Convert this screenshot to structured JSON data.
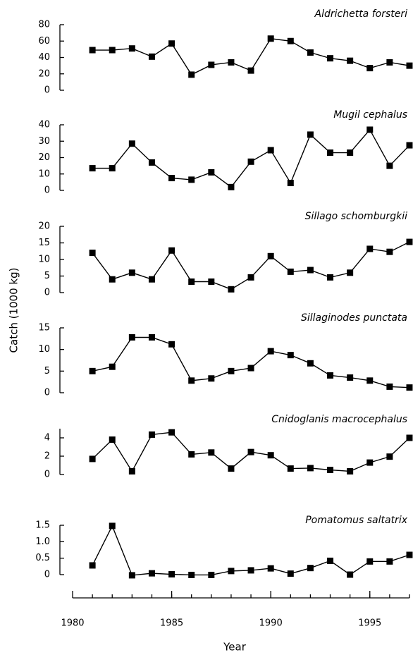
{
  "ylabel": "Catch (1000 kg)",
  "xlabel": "Year",
  "chart_data": [
    {
      "type": "line",
      "title": "Aldrichetta forsteri",
      "x": [
        1981,
        1982,
        1983,
        1984,
        1985,
        1986,
        1987,
        1988,
        1989,
        1990,
        1991,
        1992,
        1993,
        1994,
        1995,
        1996,
        1997
      ],
      "series": [
        {
          "color": "#000000",
          "values": [
            49,
            49,
            51,
            41,
            57,
            19,
            31,
            34,
            24,
            63,
            60,
            46,
            39,
            36,
            27,
            34,
            30
          ]
        }
      ],
      "ylim": [
        0,
        80
      ],
      "yticks": [
        0,
        20,
        40,
        60,
        80
      ]
    },
    {
      "type": "line",
      "title": "Mugil cephalus",
      "x": [
        1981,
        1982,
        1983,
        1984,
        1985,
        1986,
        1987,
        1988,
        1989,
        1990,
        1991,
        1992,
        1993,
        1994,
        1995,
        1996,
        1997
      ],
      "series": [
        {
          "color": "#000000",
          "values": [
            13.5,
            13.5,
            28.5,
            17,
            7.5,
            6.5,
            11,
            2,
            17.5,
            24.5,
            4.5,
            34,
            23,
            23,
            37,
            15,
            27.5
          ]
        }
      ],
      "ylim": [
        0,
        40
      ],
      "yticks": [
        0,
        10,
        20,
        30,
        40
      ]
    },
    {
      "type": "line",
      "title": "Sillago schomburgkii",
      "x": [
        1981,
        1982,
        1983,
        1984,
        1985,
        1986,
        1987,
        1988,
        1989,
        1990,
        1991,
        1992,
        1993,
        1994,
        1995,
        1996,
        1997
      ],
      "series": [
        {
          "color": "#000000",
          "values": [
            12,
            4,
            6,
            4,
            12.7,
            3.3,
            3.3,
            1,
            4.6,
            11,
            6.3,
            6.8,
            4.6,
            6,
            13.2,
            12.3,
            15.3
          ]
        }
      ],
      "ylim": [
        0,
        20
      ],
      "yticks": [
        0,
        5,
        10,
        15,
        20
      ]
    },
    {
      "type": "line",
      "title": "Sillaginodes punctata",
      "x": [
        1981,
        1982,
        1983,
        1984,
        1985,
        1986,
        1987,
        1988,
        1989,
        1990,
        1991,
        1992,
        1993,
        1994,
        1995,
        1996,
        1997
      ],
      "series": [
        {
          "color": "#000000",
          "values": [
            5,
            6,
            12.8,
            12.8,
            11.2,
            2.8,
            3.3,
            5,
            5.7,
            9.6,
            8.7,
            6.8,
            4,
            3.5,
            2.8,
            1.4,
            1.2
          ]
        }
      ],
      "ylim": [
        0,
        15
      ],
      "yticks": [
        0,
        5,
        10,
        15
      ]
    },
    {
      "type": "line",
      "title": "Cnidoglanis macrocephalus",
      "x": [
        1981,
        1982,
        1983,
        1984,
        1985,
        1986,
        1987,
        1988,
        1989,
        1990,
        1991,
        1992,
        1993,
        1994,
        1995,
        1996,
        1997
      ],
      "series": [
        {
          "color": "#000000",
          "values": [
            1.7,
            3.8,
            0.35,
            4.35,
            4.6,
            2.2,
            2.4,
            0.65,
            2.45,
            2.1,
            0.65,
            0.7,
            0.5,
            0.35,
            1.3,
            1.95,
            4
          ]
        }
      ],
      "ylim": [
        0,
        5
      ],
      "yticks": [
        0,
        2,
        4
      ]
    },
    {
      "type": "line",
      "title": "Pomatomus saltatrix",
      "x": [
        1981,
        1982,
        1983,
        1984,
        1985,
        1986,
        1987,
        1988,
        1989,
        1990,
        1991,
        1992,
        1993,
        1994,
        1995,
        1996,
        1997
      ],
      "series": [
        {
          "color": "#000000",
          "values": [
            0.28,
            1.48,
            -0.02,
            0.04,
            0.01,
            -0.01,
            -0.01,
            0.11,
            0.13,
            0.19,
            0.03,
            0.2,
            0.42,
            0.0,
            0.4,
            0.4,
            0.6
          ]
        }
      ],
      "ylim": [
        0,
        1.5
      ],
      "yticks": [
        0,
        0.5,
        {
          "value": 1,
          "label": "1.0"
        },
        1.5
      ],
      "xlim": [
        1980,
        1997
      ],
      "xticks": [
        1980,
        1985,
        1990,
        1995
      ]
    }
  ]
}
